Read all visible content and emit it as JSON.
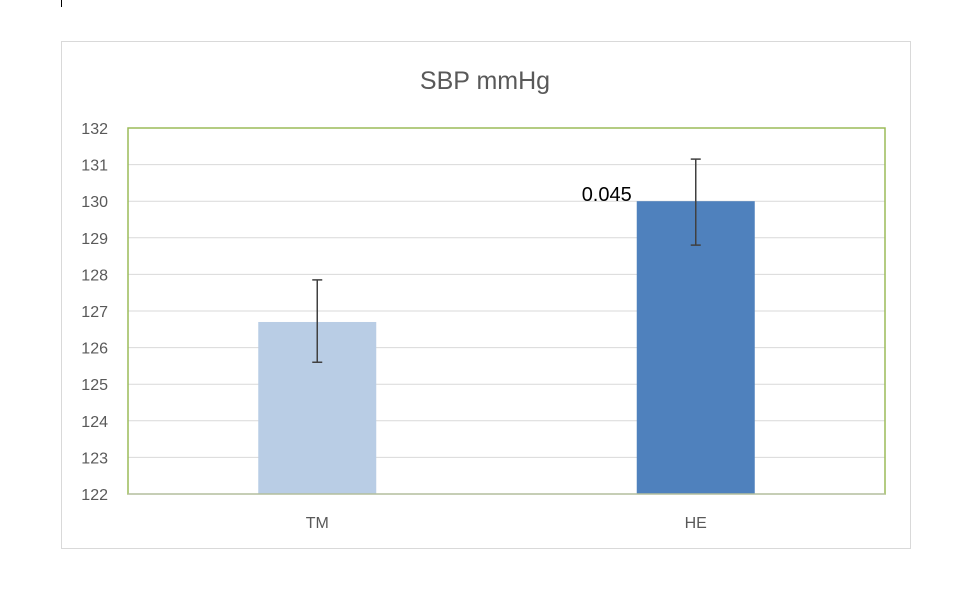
{
  "chart_data": {
    "type": "bar",
    "title": "SBP mmHg",
    "categories": [
      "TM",
      "HE"
    ],
    "values": [
      126.7,
      130.0
    ],
    "error_bars": [
      [
        125.6,
        127.85
      ],
      [
        128.8,
        131.15
      ]
    ],
    "annotations": [
      {
        "category": "HE",
        "text": "0.045"
      }
    ],
    "colors": [
      "#b9cde5",
      "#4f81bd"
    ],
    "plot_border_color": "#9bbb59",
    "gridline_color": "#d9d9d9",
    "error_bar_color": "#404040",
    "ylim": [
      122,
      132
    ],
    "yticks": [
      122,
      123,
      124,
      125,
      126,
      127,
      128,
      129,
      130,
      131,
      132
    ],
    "grid": true,
    "xlabel": "",
    "ylabel": ""
  }
}
